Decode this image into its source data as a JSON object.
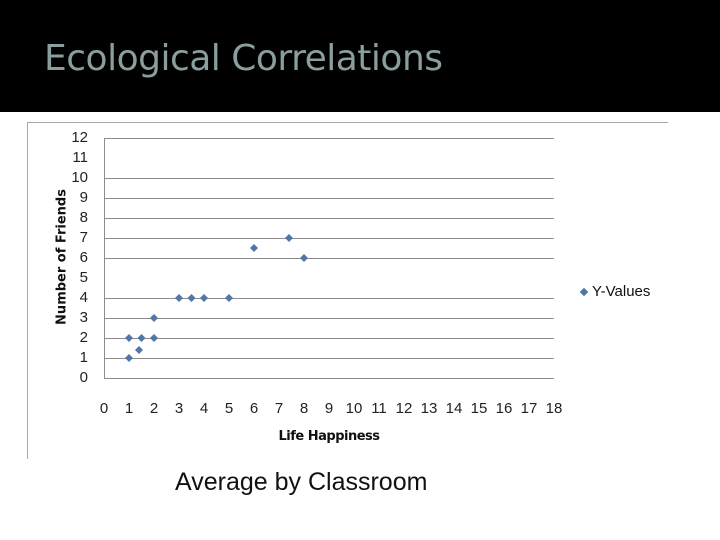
{
  "slide": {
    "title": "Ecological Correlations",
    "caption": "Average by Classroom",
    "colors": {
      "header_bg": "#000000",
      "title": "#8a9e9e",
      "marker": "#4f78a8",
      "gridline": "#8c8c8c"
    }
  },
  "chart_data": {
    "type": "scatter",
    "title": "",
    "xlabel": "Life Happiness",
    "ylabel": "Number of Friends",
    "xlim": [
      0,
      18
    ],
    "ylim": [
      0,
      12
    ],
    "x_ticks": [
      "0",
      "1",
      "2",
      "3",
      "4",
      "5",
      "6",
      "7",
      "8",
      "9",
      "10",
      "11",
      "12",
      "13",
      "14",
      "15",
      "16",
      "17",
      "18"
    ],
    "y_ticks": [
      "12",
      "11",
      "10",
      "9",
      "8",
      "7",
      "6",
      "5",
      "4",
      "3",
      "2",
      "1",
      "0"
    ],
    "gridlines_y": [
      1,
      2,
      3,
      4,
      6,
      7,
      8,
      9,
      10,
      12
    ],
    "grid": true,
    "legend_position": "right",
    "series": [
      {
        "name": "Y-Values",
        "marker": "diamond",
        "points": [
          {
            "x": 1.0,
            "y": 1.0
          },
          {
            "x": 1.0,
            "y": 2.0
          },
          {
            "x": 1.4,
            "y": 1.4
          },
          {
            "x": 1.5,
            "y": 2.0
          },
          {
            "x": 2.0,
            "y": 2.0
          },
          {
            "x": 2.0,
            "y": 3.0
          },
          {
            "x": 3.0,
            "y": 4.0
          },
          {
            "x": 3.5,
            "y": 4.0
          },
          {
            "x": 4.0,
            "y": 4.0
          },
          {
            "x": 5.0,
            "y": 4.0
          },
          {
            "x": 6.0,
            "y": 6.5
          },
          {
            "x": 7.4,
            "y": 7.0
          },
          {
            "x": 8.0,
            "y": 6.0
          }
        ]
      }
    ]
  }
}
